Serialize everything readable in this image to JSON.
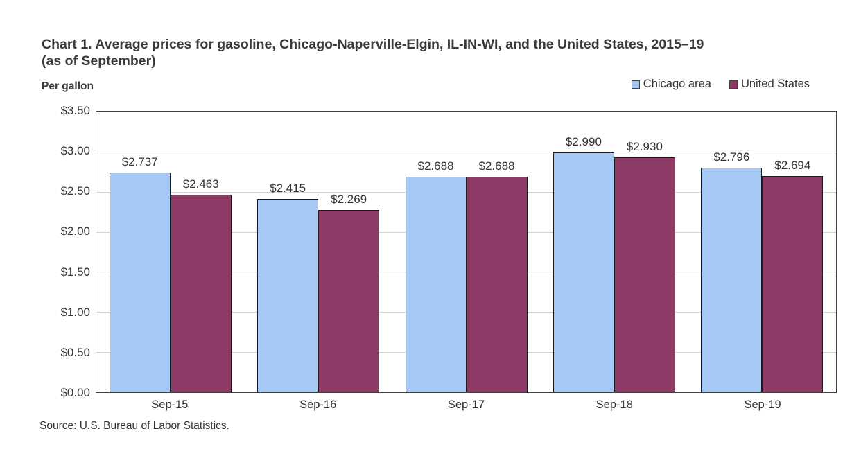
{
  "title": "Chart 1. Average prices for gasoline, Chicago-Naperville-Elgin, IL-IN-WI, and the United States, 2015–19 (as of September)",
  "y_axis_unit": "Per gallon",
  "source": "Source: U.S. Bureau of Labor Statistics.",
  "legend": [
    {
      "label": "Chicago area",
      "color": "#a5c8f5"
    },
    {
      "label": "United States",
      "color": "#8e3a67"
    }
  ],
  "chart_data": {
    "type": "bar",
    "title": "Chart 1. Average prices for gasoline, Chicago-Naperville-Elgin, IL-IN-WI, and the United States, 2015–19 (as of September)",
    "ylabel": "Per gallon",
    "categories": [
      "Sep-15",
      "Sep-16",
      "Sep-17",
      "Sep-18",
      "Sep-19"
    ],
    "series": [
      {
        "name": "Chicago area",
        "color": "#a5c8f5",
        "values": [
          2.737,
          2.415,
          2.688,
          2.99,
          2.796
        ],
        "labels": [
          "$2.737",
          "$2.415",
          "$2.688",
          "$2.990",
          "$2.796"
        ]
      },
      {
        "name": "United States",
        "color": "#8e3a67",
        "values": [
          2.463,
          2.269,
          2.688,
          2.93,
          2.694
        ],
        "labels": [
          "$2.463",
          "$2.269",
          "$2.688",
          "$2.930",
          "$2.694"
        ]
      }
    ],
    "ylim": [
      0,
      3.5
    ],
    "yticks": [
      {
        "value": 3.5,
        "label": "$3.50"
      },
      {
        "value": 3.0,
        "label": "$3.00"
      },
      {
        "value": 2.5,
        "label": "$2.50"
      },
      {
        "value": 2.0,
        "label": "$2.00"
      },
      {
        "value": 1.5,
        "label": "$1.50"
      },
      {
        "value": 1.0,
        "label": "$1.00"
      },
      {
        "value": 0.5,
        "label": "$0.50"
      },
      {
        "value": 0.0,
        "label": "$0.00"
      }
    ],
    "grid": true,
    "legend_position": "top-right"
  }
}
